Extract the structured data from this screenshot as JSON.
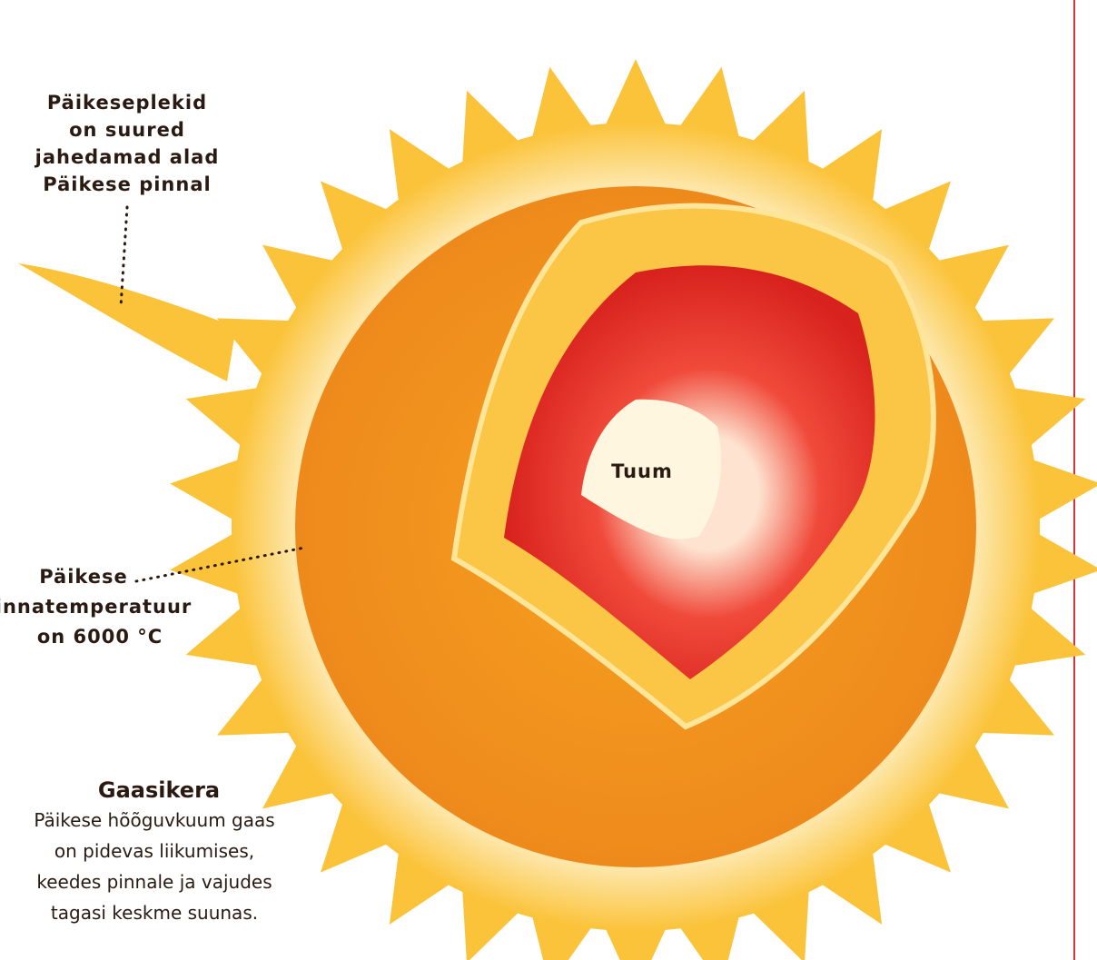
{
  "labels": {
    "sunspots": [
      "Päikeseplekid",
      "on suured",
      "jahedamad alad",
      "Päikese pinnal"
    ],
    "core": "Tuum",
    "surface": [
      "Päikese",
      "pinnatemperatuur",
      "on 6000 °C"
    ]
  },
  "info": {
    "title": "Gaasikera",
    "text": [
      "Päikese hõõguvkuum gaas",
      "on pidevas liikumises,",
      "keedes pinnale ja vajudes",
      "tagasi keskme suunas."
    ]
  }
}
